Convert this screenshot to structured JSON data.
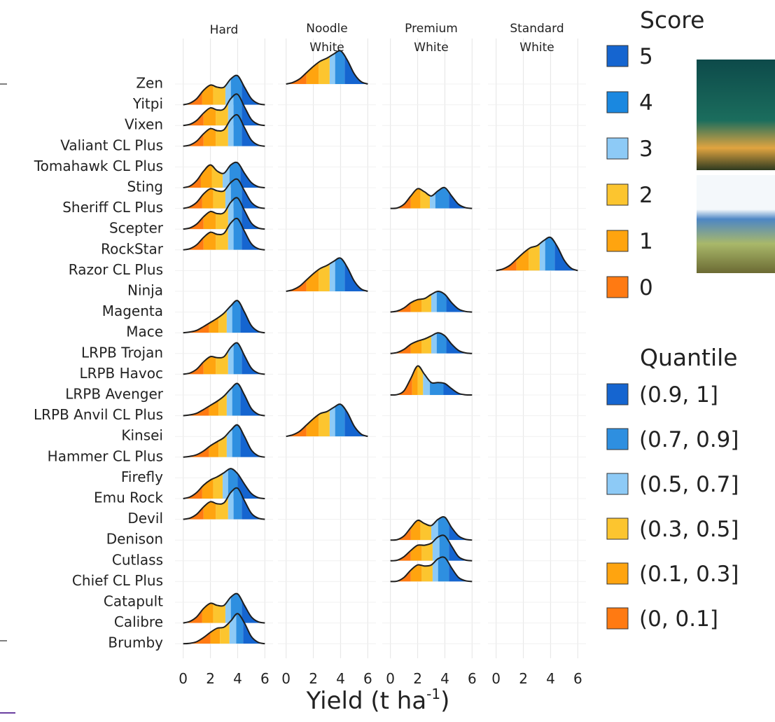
{
  "chart_data": {
    "type": "ridgeline",
    "x_label": {
      "text": "Yield (t ha",
      "superscript": "-1",
      "suffix": ")"
    },
    "categories": [
      "Zen",
      "Yitpi",
      "Vixen",
      "Valiant CL Plus",
      "Tomahawk CL Plus",
      "Sting",
      "Sheriff CL Plus",
      "Scepter",
      "RockStar",
      "Razor CL Plus",
      "Ninja",
      "Magenta",
      "Mace",
      "LRPB Trojan",
      "LRPB Havoc",
      "LRPB Avenger",
      "LRPB Anvil CL Plus",
      "Kinsei",
      "Hammer CL Plus",
      "Firefly",
      "Emu Rock",
      "Devil",
      "Denison",
      "Cutlass",
      "Chief CL Plus",
      "Catapult",
      "Calibre",
      "Brumby"
    ],
    "x": [
      0,
      0.5,
      1,
      1.5,
      2,
      2.5,
      3,
      3.5,
      4,
      4.5,
      5,
      5.5,
      6
    ],
    "xlim": [
      -0.6,
      6.6
    ],
    "xticks": [
      0,
      2,
      4,
      6
    ],
    "grid": true,
    "quantile_colors": [
      "#ff7a12",
      "#ffa40f",
      "#fcc52f",
      "#8dcaf6",
      "#2e8fe0",
      "#1565d0"
    ],
    "facets": [
      {
        "label": [
          "Hard"
        ],
        "values": [
          null,
          [
            0,
            0.08,
            0.3,
            0.7,
            0.95,
            0.85,
            0.85,
            1.25,
            1.4,
            0.85,
            0.3,
            0.06,
            0
          ],
          [
            0,
            0.06,
            0.25,
            0.6,
            0.85,
            0.75,
            0.8,
            1.3,
            1.5,
            0.9,
            0.3,
            0.06,
            0
          ],
          [
            0,
            0.06,
            0.25,
            0.6,
            0.85,
            0.75,
            0.8,
            1.3,
            1.5,
            0.9,
            0.3,
            0.06,
            0
          ],
          null,
          [
            0,
            0.08,
            0.35,
            0.8,
            1.1,
            0.8,
            0.7,
            1.1,
            1.2,
            0.7,
            0.25,
            0.05,
            0
          ],
          [
            0,
            0.08,
            0.3,
            0.7,
            0.95,
            0.85,
            0.85,
            1.25,
            1.4,
            0.85,
            0.3,
            0.06,
            0
          ],
          [
            0,
            0.06,
            0.25,
            0.6,
            0.85,
            0.75,
            0.8,
            1.3,
            1.5,
            0.9,
            0.3,
            0.06,
            0
          ],
          [
            0,
            0.06,
            0.25,
            0.6,
            0.85,
            0.75,
            0.8,
            1.3,
            1.5,
            0.9,
            0.3,
            0.06,
            0
          ],
          null,
          null,
          null,
          [
            0,
            0.04,
            0.12,
            0.3,
            0.5,
            0.7,
            0.95,
            1.3,
            1.55,
            1.0,
            0.35,
            0.07,
            0
          ],
          null,
          [
            0,
            0.06,
            0.25,
            0.6,
            0.85,
            0.8,
            0.85,
            1.3,
            1.5,
            0.9,
            0.3,
            0.06,
            0
          ],
          null,
          [
            0,
            0.04,
            0.12,
            0.3,
            0.5,
            0.7,
            0.95,
            1.3,
            1.55,
            1.0,
            0.35,
            0.07,
            0
          ],
          null,
          [
            0,
            0.04,
            0.12,
            0.3,
            0.55,
            0.75,
            0.95,
            1.3,
            1.55,
            1.0,
            0.35,
            0.07,
            0
          ],
          null,
          [
            0,
            0.08,
            0.3,
            0.65,
            0.9,
            1.05,
            1.25,
            1.45,
            1.2,
            0.7,
            0.25,
            0.05,
            0
          ],
          [
            0,
            0.06,
            0.25,
            0.6,
            0.85,
            0.75,
            0.8,
            1.3,
            1.5,
            0.9,
            0.3,
            0.06,
            0
          ],
          null,
          null,
          null,
          null,
          [
            0,
            0.08,
            0.3,
            0.7,
            0.95,
            0.85,
            0.85,
            1.25,
            1.4,
            0.85,
            0.3,
            0.06,
            0
          ],
          [
            0,
            0.02,
            0.1,
            0.3,
            0.55,
            0.75,
            0.8,
            1.1,
            1.45,
            1.0,
            0.35,
            0.07,
            0
          ],
          null
        ],
        "quantiles": [
          null,
          [
            1.4,
            2.2,
            3.1,
            3.5,
            4.3
          ],
          [
            1.5,
            2.4,
            3.3,
            3.7,
            4.3
          ],
          [
            1.5,
            2.4,
            3.3,
            3.7,
            4.3
          ],
          null,
          [
            1.3,
            2.1,
            2.9,
            3.4,
            4.2
          ],
          [
            1.4,
            2.2,
            3.1,
            3.5,
            4.3
          ],
          [
            1.5,
            2.4,
            3.3,
            3.7,
            4.3
          ],
          [
            1.5,
            2.4,
            3.3,
            3.7,
            4.3
          ],
          null,
          null,
          null,
          [
            1.9,
            2.6,
            3.2,
            3.6,
            4.2
          ],
          null,
          [
            1.5,
            2.4,
            3.3,
            3.7,
            4.3
          ],
          null,
          [
            1.9,
            2.6,
            3.2,
            3.6,
            4.2
          ],
          null,
          [
            1.9,
            2.6,
            3.2,
            3.6,
            4.2
          ],
          null,
          [
            1.4,
            2.2,
            2.9,
            3.3,
            4.0
          ],
          [
            1.5,
            2.4,
            3.3,
            3.7,
            4.3
          ],
          null,
          null,
          null,
          null,
          [
            1.4,
            2.2,
            3.1,
            3.5,
            4.3
          ],
          [
            2.0,
            2.7,
            3.4,
            3.9,
            4.4
          ],
          null
        ]
      },
      {
        "label": [
          "Noodle",
          "White"
        ],
        "values": [
          [
            0,
            0.08,
            0.25,
            0.55,
            0.85,
            1.1,
            1.25,
            1.45,
            1.6,
            1.15,
            0.5,
            0.12,
            0
          ],
          null,
          null,
          null,
          null,
          null,
          null,
          null,
          null,
          null,
          [
            0,
            0.08,
            0.25,
            0.55,
            0.85,
            1.1,
            1.25,
            1.45,
            1.6,
            1.15,
            0.5,
            0.12,
            0
          ],
          null,
          null,
          null,
          null,
          null,
          null,
          [
            0,
            0.08,
            0.25,
            0.55,
            0.85,
            1.1,
            1.2,
            1.4,
            1.55,
            1.15,
            0.5,
            0.12,
            0
          ],
          null,
          null,
          null,
          null,
          null,
          null,
          null,
          null,
          null,
          null
        ],
        "quantiles": [
          [
            1.5,
            2.4,
            3.2,
            3.6,
            4.3
          ],
          null,
          null,
          null,
          null,
          null,
          null,
          null,
          null,
          null,
          [
            1.5,
            2.4,
            3.2,
            3.6,
            4.3
          ],
          null,
          null,
          null,
          null,
          null,
          null,
          [
            1.5,
            2.4,
            3.2,
            3.6,
            4.3
          ],
          null,
          null,
          null,
          null,
          null,
          null,
          null,
          null,
          null,
          null
        ]
      },
      {
        "label": [
          "Premium",
          "White"
        ],
        "values": [
          null,
          null,
          null,
          null,
          null,
          null,
          [
            0,
            0.02,
            0.2,
            0.6,
            0.95,
            0.8,
            0.6,
            0.85,
            1.0,
            0.6,
            0.2,
            0.04,
            0
          ],
          null,
          null,
          null,
          null,
          [
            0,
            0.05,
            0.2,
            0.45,
            0.6,
            0.65,
            0.85,
            1.0,
            0.85,
            0.45,
            0.15,
            0.03,
            0
          ],
          null,
          [
            0,
            0.05,
            0.2,
            0.45,
            0.6,
            0.7,
            0.85,
            1.0,
            0.85,
            0.45,
            0.15,
            0.03,
            0
          ],
          null,
          [
            0,
            0.02,
            0.2,
            0.8,
            1.4,
            1.0,
            0.6,
            0.6,
            0.55,
            0.3,
            0.08,
            0.01,
            0
          ],
          null,
          null,
          null,
          null,
          null,
          null,
          [
            0,
            0.02,
            0.2,
            0.6,
            0.95,
            0.8,
            0.7,
            1.0,
            1.1,
            0.6,
            0.2,
            0.04,
            0
          ],
          [
            0,
            0.03,
            0.2,
            0.5,
            0.75,
            0.75,
            0.85,
            1.15,
            1.2,
            0.7,
            0.2,
            0.04,
            0
          ],
          [
            0,
            0.02,
            0.2,
            0.55,
            0.8,
            0.75,
            0.8,
            1.1,
            1.15,
            0.65,
            0.2,
            0.04,
            0
          ],
          null,
          null,
          null
        ],
        "quantiles": [
          null,
          null,
          null,
          null,
          null,
          null,
          [
            1.5,
            2.2,
            2.9,
            3.3,
            4.3
          ],
          null,
          null,
          null,
          null,
          [
            1.5,
            2.3,
            3.0,
            3.4,
            4.1
          ],
          null,
          [
            1.5,
            2.3,
            3.0,
            3.4,
            4.1
          ],
          null,
          [
            1.6,
            2.0,
            2.4,
            2.9,
            3.9
          ],
          null,
          null,
          null,
          null,
          null,
          null,
          [
            1.5,
            2.2,
            3.0,
            3.5,
            4.3
          ],
          [
            1.5,
            2.3,
            3.1,
            3.6,
            4.3
          ],
          [
            1.5,
            2.3,
            3.1,
            3.5,
            4.3
          ],
          null,
          null,
          null
        ]
      },
      {
        "label": [
          "Standard",
          "White"
        ],
        "values": [
          null,
          null,
          null,
          null,
          null,
          null,
          null,
          null,
          null,
          [
            0,
            0.08,
            0.25,
            0.55,
            0.85,
            1.1,
            1.2,
            1.45,
            1.6,
            1.15,
            0.5,
            0.12,
            0
          ],
          null,
          null,
          null,
          null,
          null,
          null,
          null,
          null,
          null,
          null,
          null,
          null,
          null,
          null,
          null,
          null,
          null,
          null
        ],
        "quantiles": [
          null,
          null,
          null,
          null,
          null,
          null,
          null,
          null,
          null,
          [
            1.5,
            2.4,
            3.2,
            3.6,
            4.3
          ],
          null,
          null,
          null,
          null,
          null,
          null,
          null,
          null,
          null,
          null,
          null,
          null,
          null,
          null,
          null,
          null,
          null,
          null
        ]
      }
    ],
    "legends": [
      {
        "title": "Score",
        "labels": [
          5,
          4,
          3,
          2,
          1,
          0
        ],
        "colors": [
          "#1565d0",
          "#1a88e0",
          "#8dcaf6",
          "#fcc52f",
          "#ffa40f",
          "#ff7a12"
        ]
      },
      {
        "title": "Quantile",
        "labels": [
          "(0.9, 1]",
          "(0.7, 0.9]",
          "(0.5, 0.7]",
          "(0.3, 0.5]",
          "(0.1, 0.3]",
          "(0, 0.1]"
        ],
        "colors": [
          "#1565d0",
          "#2e8fe0",
          "#8dcaf6",
          "#fcc52f",
          "#ffa40f",
          "#ff7a12"
        ]
      }
    ]
  }
}
